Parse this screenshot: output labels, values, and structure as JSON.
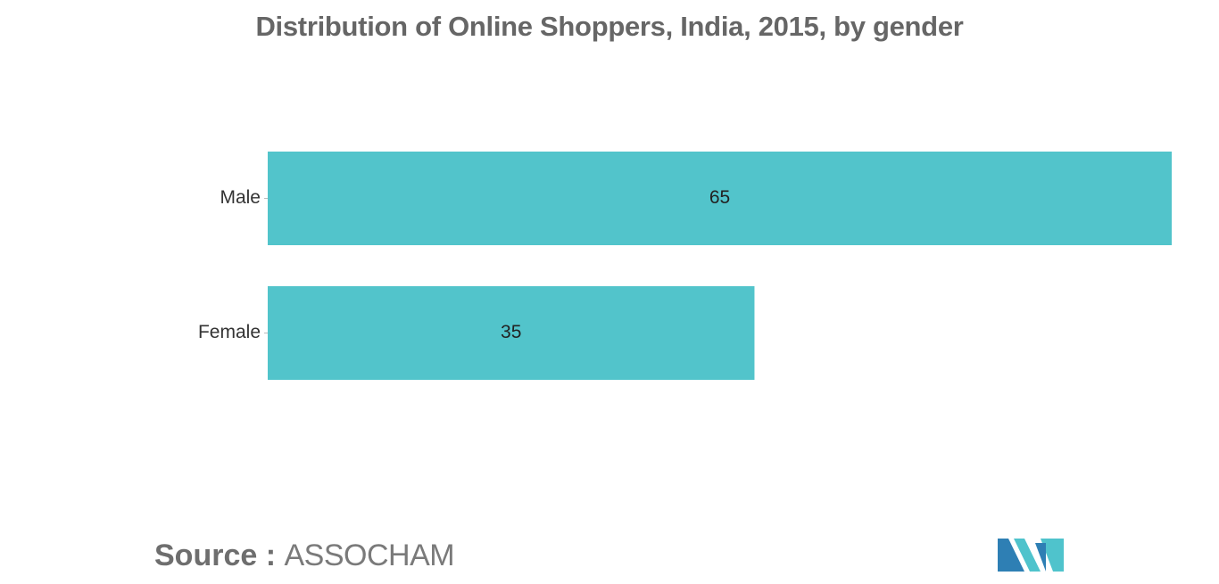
{
  "chart_data": {
    "type": "bar",
    "orientation": "horizontal",
    "title": "Distribution of Online Shoppers, India, 2015, by gender",
    "categories": [
      "Male",
      "Female"
    ],
    "values": [
      65,
      35
    ],
    "data_labels": [
      "65",
      "35"
    ],
    "xlim": [
      0,
      65
    ],
    "grid": false,
    "legend": "none",
    "bar_color": "#52C4CB"
  },
  "source": {
    "label": "Source :",
    "value": "ASSOCHAM"
  },
  "logo": {
    "color_dark": "#2E7FB4",
    "color_light": "#4FC3CC"
  }
}
